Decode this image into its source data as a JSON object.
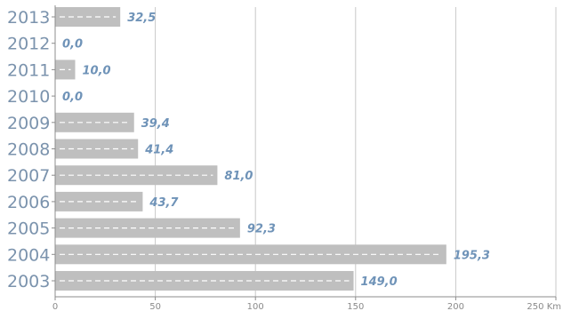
{
  "chart_data": {
    "type": "bar",
    "orientation": "horizontal",
    "categories": [
      "2013",
      "2012",
      "2011",
      "2010",
      "2009",
      "2008",
      "2007",
      "2006",
      "2005",
      "2004",
      "2003"
    ],
    "values": [
      32.5,
      0.0,
      10.0,
      0.0,
      39.4,
      41.4,
      81.0,
      43.7,
      92.3,
      195.3,
      149.0
    ],
    "value_labels": [
      "32,5",
      "0,0",
      "10,0",
      "0,0",
      "39,4",
      "41,4",
      "81,0",
      "43,7",
      "92,3",
      "195,3",
      "149,0"
    ],
    "x_ticks": [
      0,
      50,
      100,
      150,
      200,
      250
    ],
    "x_tick_labels": [
      "0",
      "50",
      "100",
      "150",
      "200",
      "250 Km"
    ],
    "xlim": [
      0,
      250
    ],
    "title": "",
    "xlabel": "",
    "ylabel": "",
    "grid": "vertical",
    "colors": {
      "bar": "#bfbfbf",
      "bar_dash": "#ffffff",
      "label": "#6f93b8",
      "year": "#7b93ad",
      "grid": "#c8c8c8",
      "axis": "#8c8c8c"
    }
  }
}
